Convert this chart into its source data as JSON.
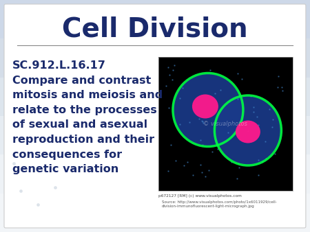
{
  "title": "Cell Division",
  "title_color": "#1a2a6c",
  "title_fontsize": 28,
  "title_bold": true,
  "body_text": "SC.912.L.16.17\nCompare and contrast\nmitosis and meiosis and\nrelate to the processes\nof sexual and asexual\nreproduction and their\nconsequences for\ngenetic variation",
  "body_color": "#1a2a6c",
  "body_fontsize": 11.5,
  "caption_text": "p672127 [RM] (c) www.visualphotos.com",
  "source_text": "Source: http://www.visualphotos.com/photo/1x6011929/cell-\ndivision-immunofluorescent-light-micrograph.jpg",
  "bg_color_top": "#d8e4f0",
  "bg_color_bottom": "#c0d0e0",
  "separator_color": "#888888",
  "slide_bg": "#f0f4f8"
}
